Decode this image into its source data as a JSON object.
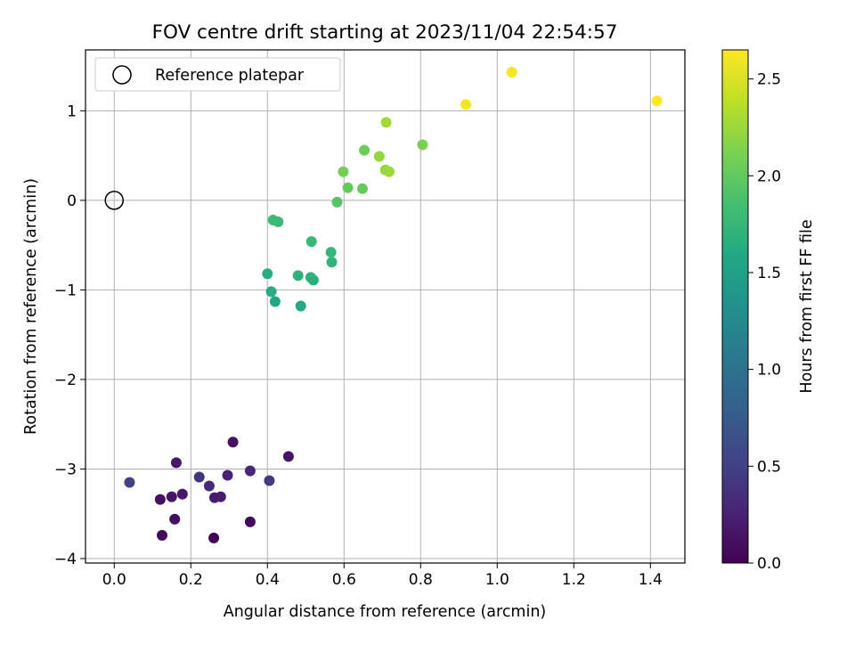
{
  "chart_data": {
    "type": "scatter",
    "title": "FOV centre drift starting at 2023/11/04 22:54:57",
    "xlabel": "Angular distance from reference (arcmin)",
    "ylabel": "Rotation from reference (arcmin)",
    "xlim": [
      -0.075,
      1.49
    ],
    "ylim": [
      -4.05,
      1.68
    ],
    "xticks": [
      0.0,
      0.2,
      0.4,
      0.6,
      0.8,
      1.0,
      1.2,
      1.4
    ],
    "xtick_labels": [
      "0.0",
      "0.2",
      "0.4",
      "0.6",
      "0.8",
      "1.0",
      "1.2",
      "1.4"
    ],
    "yticks": [
      1,
      0,
      -1,
      -2,
      -3,
      -4
    ],
    "ytick_labels": [
      "1",
      "0",
      "−1",
      "−2",
      "−3",
      "−4"
    ],
    "grid": true,
    "legend": {
      "position": "top-left",
      "entries": [
        {
          "label": "Reference platepar",
          "marker": "open-circle",
          "color": "#000000"
        }
      ]
    },
    "reference_point": {
      "x": 0.0,
      "y": 0.0
    },
    "colorbar": {
      "label": "Hours from first FF file",
      "range": [
        0.0,
        2.65
      ],
      "ticks": [
        0.0,
        0.5,
        1.0,
        1.5,
        2.0,
        2.5
      ],
      "tick_labels": [
        "0.0",
        "0.5",
        "1.0",
        "1.5",
        "2.0",
        "2.5"
      ],
      "colormap": "viridis"
    },
    "points": [
      {
        "x": 0.26,
        "y": -3.77,
        "c": 0.02
      },
      {
        "x": 0.125,
        "y": -3.74,
        "c": 0.05
      },
      {
        "x": 0.355,
        "y": -3.59,
        "c": 0.07
      },
      {
        "x": 0.158,
        "y": -3.56,
        "c": 0.1
      },
      {
        "x": 0.12,
        "y": -3.34,
        "c": 0.12
      },
      {
        "x": 0.15,
        "y": -3.31,
        "c": 0.15
      },
      {
        "x": 0.178,
        "y": -3.28,
        "c": 0.17
      },
      {
        "x": 0.262,
        "y": -3.32,
        "c": 0.2
      },
      {
        "x": 0.278,
        "y": -3.31,
        "c": 0.22
      },
      {
        "x": 0.31,
        "y": -2.7,
        "c": 0.12
      },
      {
        "x": 0.455,
        "y": -2.86,
        "c": 0.15
      },
      {
        "x": 0.162,
        "y": -2.93,
        "c": 0.18
      },
      {
        "x": 0.296,
        "y": -3.07,
        "c": 0.25
      },
      {
        "x": 0.355,
        "y": -3.02,
        "c": 0.3
      },
      {
        "x": 0.248,
        "y": -3.19,
        "c": 0.32
      },
      {
        "x": 0.222,
        "y": -3.09,
        "c": 0.4
      },
      {
        "x": 0.405,
        "y": -3.13,
        "c": 0.45
      },
      {
        "x": 0.04,
        "y": -3.15,
        "c": 0.52
      },
      {
        "x": 0.42,
        "y": -1.13,
        "c": 1.58
      },
      {
        "x": 0.487,
        "y": -1.18,
        "c": 1.6
      },
      {
        "x": 0.41,
        "y": -1.02,
        "c": 1.62
      },
      {
        "x": 0.4,
        "y": -0.82,
        "c": 1.64
      },
      {
        "x": 0.52,
        "y": -0.89,
        "c": 1.66
      },
      {
        "x": 0.513,
        "y": -0.86,
        "c": 1.68
      },
      {
        "x": 0.48,
        "y": -0.84,
        "c": 1.7
      },
      {
        "x": 0.568,
        "y": -0.69,
        "c": 1.72
      },
      {
        "x": 0.566,
        "y": -0.58,
        "c": 1.74
      },
      {
        "x": 0.515,
        "y": -0.46,
        "c": 1.76
      },
      {
        "x": 0.428,
        "y": -0.24,
        "c": 1.78
      },
      {
        "x": 0.415,
        "y": -0.22,
        "c": 1.8
      },
      {
        "x": 0.582,
        "y": -0.02,
        "c": 1.95
      },
      {
        "x": 0.61,
        "y": 0.14,
        "c": 2.0
      },
      {
        "x": 0.648,
        "y": 0.13,
        "c": 2.02
      },
      {
        "x": 0.598,
        "y": 0.32,
        "c": 2.08
      },
      {
        "x": 0.653,
        "y": 0.56,
        "c": 2.05
      },
      {
        "x": 0.805,
        "y": 0.62,
        "c": 2.12
      },
      {
        "x": 0.692,
        "y": 0.49,
        "c": 2.22
      },
      {
        "x": 0.708,
        "y": 0.34,
        "c": 2.24
      },
      {
        "x": 0.718,
        "y": 0.32,
        "c": 2.26
      },
      {
        "x": 0.71,
        "y": 0.87,
        "c": 2.28
      },
      {
        "x": 0.918,
        "y": 1.07,
        "c": 2.6
      },
      {
        "x": 1.038,
        "y": 1.43,
        "c": 2.62
      },
      {
        "x": 1.417,
        "y": 1.11,
        "c": 2.64
      }
    ]
  }
}
